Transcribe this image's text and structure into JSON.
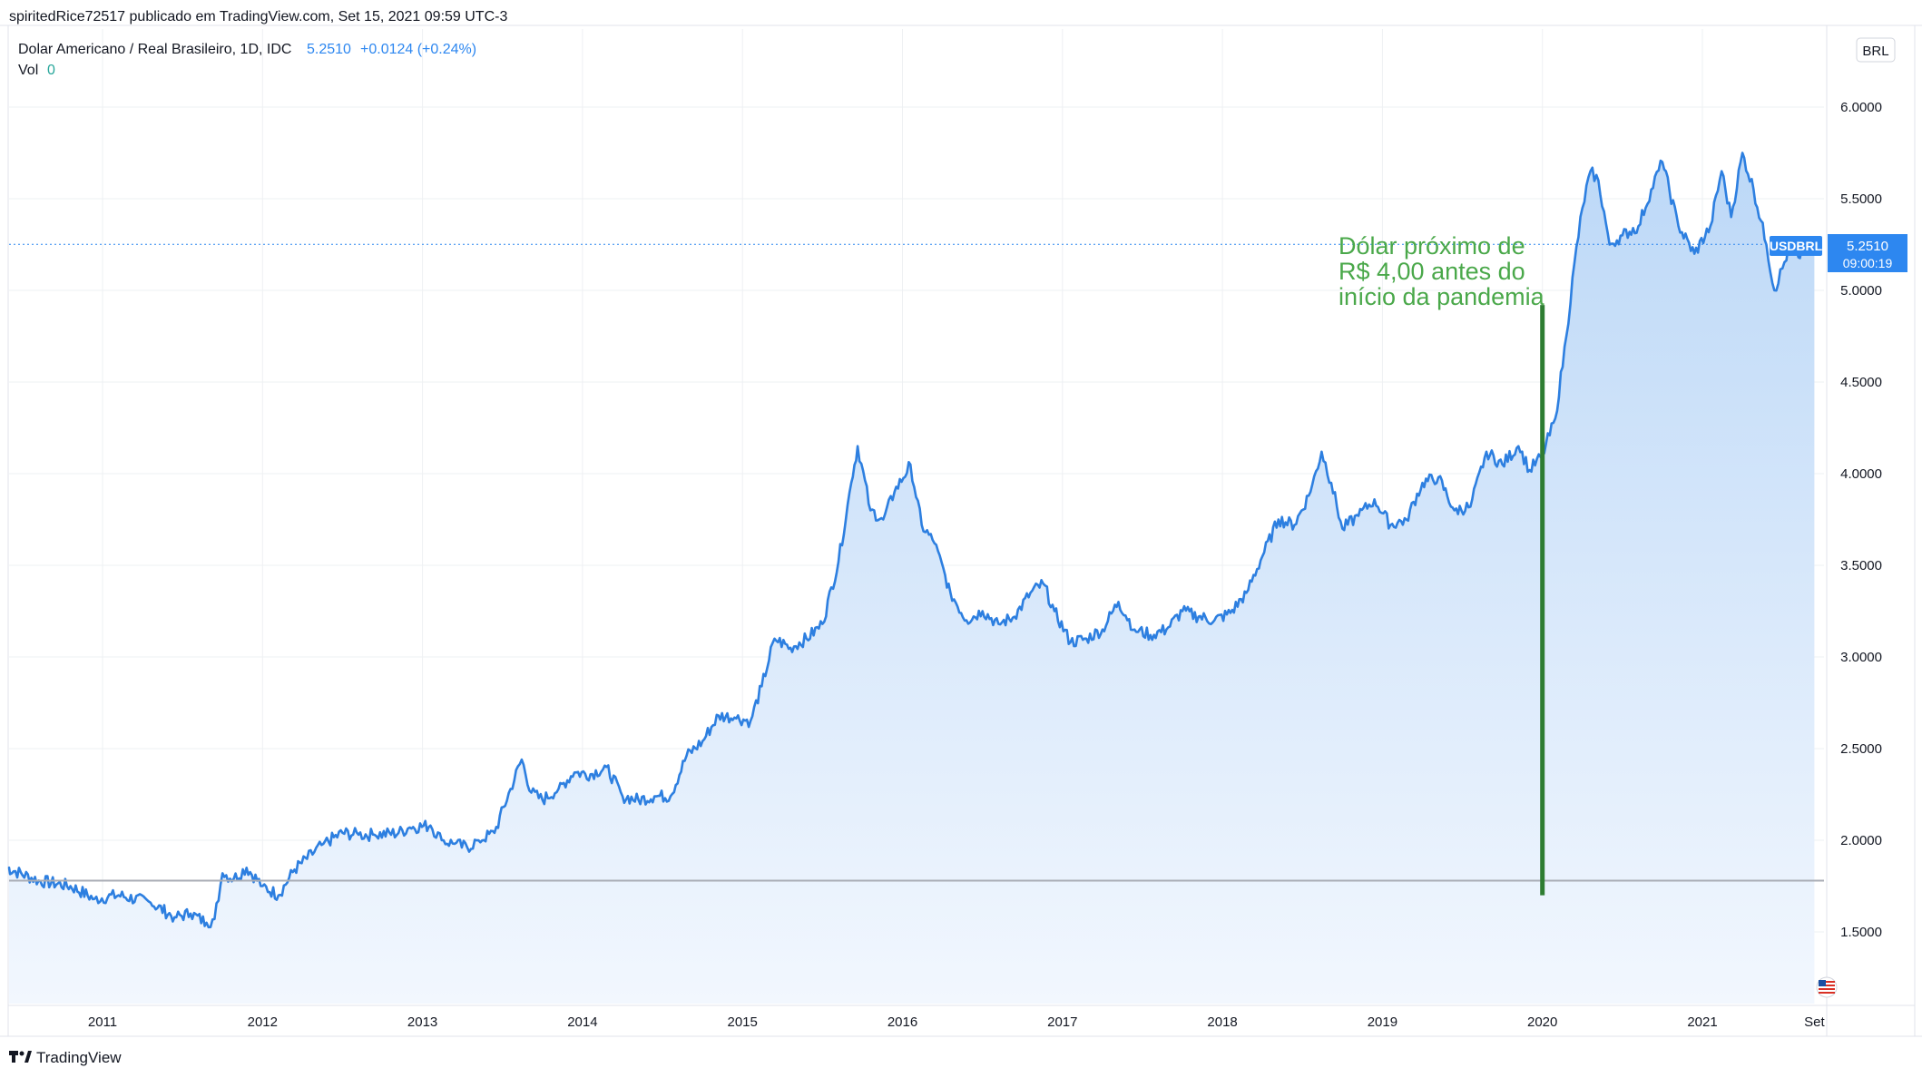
{
  "header": {
    "published_by": "spiritedRice72517 publicado em TradingView.com, Set 15, 2021 09:59 UTC-3",
    "symbol_name": "Dolar Americano / Real Brasileiro, 1D, IDC",
    "last_price": "5.2510",
    "change": "+0.0124 (+0.24%)",
    "vol_label": "Vol",
    "vol_value": "0"
  },
  "currency_button": "BRL",
  "price_tag": {
    "symbol": "USDBRL",
    "price": "5.2510",
    "countdown": "09:00:19"
  },
  "annotation": {
    "line1": "Dólar próximo de",
    "line2": "R$ 4,00 antes do",
    "line3": "início da pandemia"
  },
  "footer": {
    "brand": "TradingView"
  },
  "colors": {
    "series_line": "#2d7fe0",
    "area_fill_top": "#bcd8f7",
    "area_fill_bottom": "#f2f7fe",
    "annotation_green": "#4aa84a",
    "vertical_marker": "#2e7d32",
    "price_tag_bg": "#2d87f0",
    "horizontal_level": "#a9adb5",
    "grid": "#eef0f3",
    "text": "#131722"
  },
  "icons": [
    "us-flag-icon",
    "tradingview-logo-icon"
  ],
  "chart_data": {
    "type": "area",
    "series": [
      {
        "name": "USDBRL",
        "x": [
          2010.4,
          2010.6,
          2010.8,
          2010.95,
          2011.1,
          2011.3,
          2011.45,
          2011.55,
          2011.65,
          2011.7,
          2011.75,
          2011.82,
          2011.9,
          2012.0,
          2012.1,
          2012.2,
          2012.38,
          2012.5,
          2012.6,
          2012.7,
          2012.85,
          2012.92,
          2013.05,
          2013.12,
          2013.2,
          2013.28,
          2013.35,
          2013.45,
          2013.55,
          2013.62,
          2013.68,
          2013.75,
          2013.85,
          2013.95,
          2014.05,
          2014.15,
          2014.25,
          2014.35,
          2014.45,
          2014.55,
          2014.65,
          2014.75,
          2014.85,
          2014.95,
          2015.05,
          2015.12,
          2015.2,
          2015.3,
          2015.4,
          2015.5,
          2015.6,
          2015.68,
          2015.72,
          2015.8,
          2015.88,
          2015.95,
          2016.05,
          2016.12,
          2016.2,
          2016.3,
          2016.4,
          2016.5,
          2016.6,
          2016.7,
          2016.8,
          2016.88,
          2016.95,
          2017.05,
          2017.15,
          2017.25,
          2017.35,
          2017.45,
          2017.55,
          2017.65,
          2017.75,
          2017.85,
          2017.95,
          2018.05,
          2018.15,
          2018.25,
          2018.35,
          2018.45,
          2018.55,
          2018.62,
          2018.68,
          2018.75,
          2018.85,
          2018.95,
          2019.05,
          2019.15,
          2019.25,
          2019.35,
          2019.45,
          2019.55,
          2019.65,
          2019.75,
          2019.85,
          2019.92,
          2020.0,
          2020.08,
          2020.15,
          2020.2,
          2020.25,
          2020.3,
          2020.35,
          2020.42,
          2020.5,
          2020.6,
          2020.68,
          2020.75,
          2020.85,
          2020.95,
          2021.05,
          2021.12,
          2021.18,
          2021.25,
          2021.32,
          2021.4,
          2021.45,
          2021.5,
          2021.55,
          2021.6,
          2021.65,
          2021.7
        ],
        "y": [
          1.85,
          1.78,
          1.75,
          1.68,
          1.7,
          1.66,
          1.58,
          1.6,
          1.55,
          1.57,
          1.82,
          1.79,
          1.85,
          1.75,
          1.7,
          1.84,
          1.98,
          2.04,
          2.03,
          2.03,
          2.04,
          2.07,
          2.08,
          2.0,
          1.98,
          1.96,
          2.0,
          2.04,
          2.28,
          2.44,
          2.26,
          2.22,
          2.28,
          2.37,
          2.36,
          2.4,
          2.24,
          2.22,
          2.24,
          2.24,
          2.46,
          2.54,
          2.68,
          2.67,
          2.65,
          2.84,
          3.1,
          3.05,
          3.1,
          3.18,
          3.52,
          3.95,
          4.15,
          3.8,
          3.75,
          3.9,
          4.05,
          3.72,
          3.62,
          3.35,
          3.2,
          3.25,
          3.18,
          3.22,
          3.35,
          3.4,
          3.25,
          3.08,
          3.1,
          3.15,
          3.3,
          3.15,
          3.12,
          3.15,
          3.25,
          3.22,
          3.2,
          3.24,
          3.35,
          3.55,
          3.75,
          3.72,
          3.9,
          4.12,
          3.95,
          3.7,
          3.77,
          3.86,
          3.72,
          3.75,
          3.95,
          3.98,
          3.8,
          3.82,
          4.12,
          4.05,
          4.15,
          4.02,
          4.1,
          4.3,
          4.75,
          5.15,
          5.45,
          5.65,
          5.6,
          5.25,
          5.3,
          5.35,
          5.55,
          5.7,
          5.35,
          5.2,
          5.35,
          5.65,
          5.4,
          5.75,
          5.55,
          5.25,
          5.0,
          5.12,
          5.25,
          5.18,
          5.25,
          5.25
        ]
      }
    ],
    "y_ticks": [
      "6.0000",
      "5.5000",
      "5.0000",
      "4.5000",
      "4.0000",
      "3.5000",
      "3.0000",
      "2.5000",
      "2.0000",
      "1.5000"
    ],
    "x_ticks": [
      "2011",
      "2012",
      "2013",
      "2014",
      "2015",
      "2016",
      "2017",
      "2018",
      "2019",
      "2020",
      "2021",
      "Set"
    ],
    "ylim": [
      1.3,
      6.3
    ],
    "grid": true,
    "last_value_line": 5.251,
    "horizontal_level": 1.78,
    "vertical_marker": {
      "x": 2020.0,
      "y_from": 1.7,
      "y_to": 4.92
    }
  }
}
